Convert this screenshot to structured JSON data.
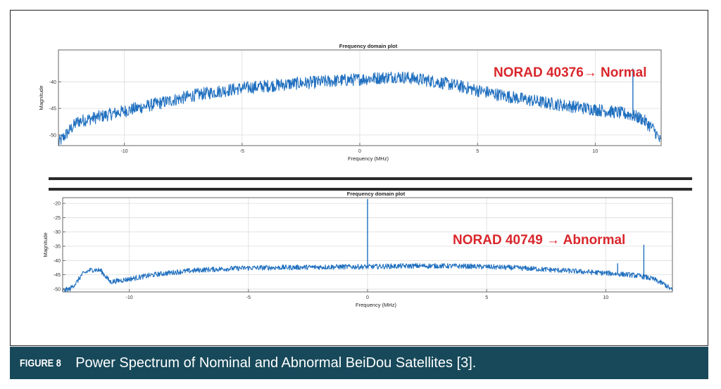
{
  "chart_data": [
    {
      "type": "line",
      "title": "Frequency domain plot",
      "xlabel": "Frequency (MHz)",
      "ylabel": "Magnitude",
      "xlim": [
        -12.8,
        12.8
      ],
      "ylim": [
        -52,
        -34
      ],
      "xticks": [
        -10,
        -5,
        0,
        5,
        10
      ],
      "yticks": [
        -40,
        -45,
        -50
      ],
      "grid": true,
      "annotation": "NORAD 40376→ Normal",
      "series": [
        {
          "color": "#1f6fbf",
          "x": [
            -12.8,
            -12.5,
            -12.2,
            -12.0,
            -11.5,
            -11.0,
            -10.0,
            -9.0,
            -8.0,
            -7.0,
            -6.0,
            -5.0,
            -4.0,
            -3.0,
            -2.0,
            -1.0,
            0.0,
            1.0,
            1.5,
            2.0,
            3.0,
            4.0,
            5.0,
            6.0,
            7.0,
            8.0,
            9.0,
            10.0,
            11.0,
            11.5,
            12.0,
            12.5,
            12.8
          ],
          "y": [
            -51.5,
            -50.0,
            -48.5,
            -47.5,
            -47.0,
            -46.5,
            -45.5,
            -44.5,
            -43.5,
            -42.5,
            -41.8,
            -41.2,
            -40.8,
            -40.4,
            -40.1,
            -39.8,
            -39.5,
            -39.2,
            -39.0,
            -39.2,
            -39.8,
            -40.6,
            -41.6,
            -42.5,
            -43.3,
            -44.0,
            -44.6,
            -45.2,
            -45.8,
            -46.2,
            -47.0,
            -49.0,
            -51.5
          ],
          "noise_amplitude": 1.2
        }
      ],
      "spikes": [
        {
          "x": 11.6,
          "y": -37.5
        }
      ]
    },
    {
      "type": "line",
      "title": "Frequency domain plot",
      "xlabel": "Frequency (MHz)",
      "ylabel": "Magnitude",
      "xlim": [
        -12.8,
        12.8
      ],
      "ylim": [
        -51,
        -18
      ],
      "xticks": [
        -10,
        -5,
        0,
        5,
        10
      ],
      "yticks": [
        -20,
        -25,
        -30,
        -35,
        -40,
        -45,
        -50
      ],
      "grid": true,
      "annotation": "NORAD 40749 → Abnormal",
      "series": [
        {
          "color": "#1f6fbf",
          "x": [
            -12.8,
            -12.5,
            -12.2,
            -12.0,
            -11.7,
            -11.5,
            -11.2,
            -11.0,
            -10.8,
            -10.0,
            -9.0,
            -8.0,
            -7.0,
            -6.0,
            -5.0,
            -4.0,
            -3.0,
            -2.0,
            -1.0,
            0.0,
            1.0,
            2.0,
            3.0,
            4.0,
            5.0,
            6.0,
            7.0,
            8.0,
            9.0,
            10.0,
            11.0,
            11.5,
            12.0,
            12.5,
            12.8
          ],
          "y": [
            -50.5,
            -50.0,
            -47.5,
            -45.0,
            -43.5,
            -43.2,
            -43.5,
            -45.5,
            -47.5,
            -46.5,
            -45.0,
            -44.0,
            -43.3,
            -42.9,
            -42.6,
            -42.5,
            -42.4,
            -42.3,
            -42.2,
            -42.2,
            -42.0,
            -41.9,
            -41.9,
            -42.0,
            -42.2,
            -42.5,
            -42.9,
            -43.4,
            -43.9,
            -44.4,
            -45.0,
            -45.5,
            -46.5,
            -48.5,
            -50.5
          ],
          "noise_amplitude": 0.9
        }
      ],
      "spikes": [
        {
          "x": 0.0,
          "y": -18.5
        },
        {
          "x": 10.5,
          "y": -41.0
        },
        {
          "x": 11.6,
          "y": -34.5
        }
      ]
    }
  ],
  "caption": {
    "label": "FIGURE 8",
    "text": "Power Spectrum of Nominal and Abnormal BeiDou Satellites [3]."
  }
}
